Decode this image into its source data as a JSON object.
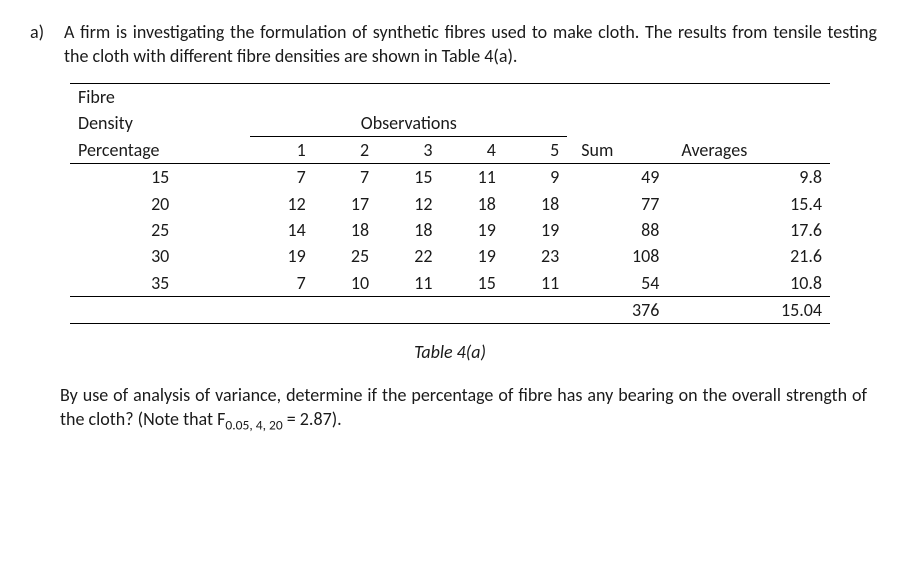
{
  "question": {
    "label": "a)",
    "intro": "A firm is investigating the formulation of synthetic fibres used to make cloth. The results from tensile testing the cloth with different fibre densities are shown in Table 4(a)."
  },
  "table": {
    "header": {
      "row_label_line1": "Fibre",
      "row_label_line2": "Density",
      "row_label_line3": "Percentage",
      "obs_label": "Observations",
      "obs_cols": [
        "1",
        "2",
        "3",
        "4",
        "5"
      ],
      "sum_label": "Sum",
      "avg_label": "Averages"
    },
    "rows": [
      {
        "p": "15",
        "o": [
          "7",
          "7",
          "15",
          "11",
          "9"
        ],
        "sum": "49",
        "avg": "9.8"
      },
      {
        "p": "20",
        "o": [
          "12",
          "17",
          "12",
          "18",
          "18"
        ],
        "sum": "77",
        "avg": "15.4"
      },
      {
        "p": "25",
        "o": [
          "14",
          "18",
          "18",
          "19",
          "19"
        ],
        "sum": "88",
        "avg": "17.6"
      },
      {
        "p": "30",
        "o": [
          "19",
          "25",
          "22",
          "19",
          "23"
        ],
        "sum": "108",
        "avg": "21.6"
      },
      {
        "p": "35",
        "o": [
          "7",
          "10",
          "11",
          "15",
          "11"
        ],
        "sum": "54",
        "avg": "10.8"
      }
    ],
    "totals": {
      "sum": "376",
      "avg": "15.04"
    }
  },
  "caption": "Table 4(a)",
  "closing": {
    "text_before_F": "By use of analysis of variance, determine if the percentage of fibre has any bearing on the overall strength of the cloth? (Note that F",
    "F_sub": "0.05, 4, 20",
    "text_after_F": " =  2.87)."
  }
}
